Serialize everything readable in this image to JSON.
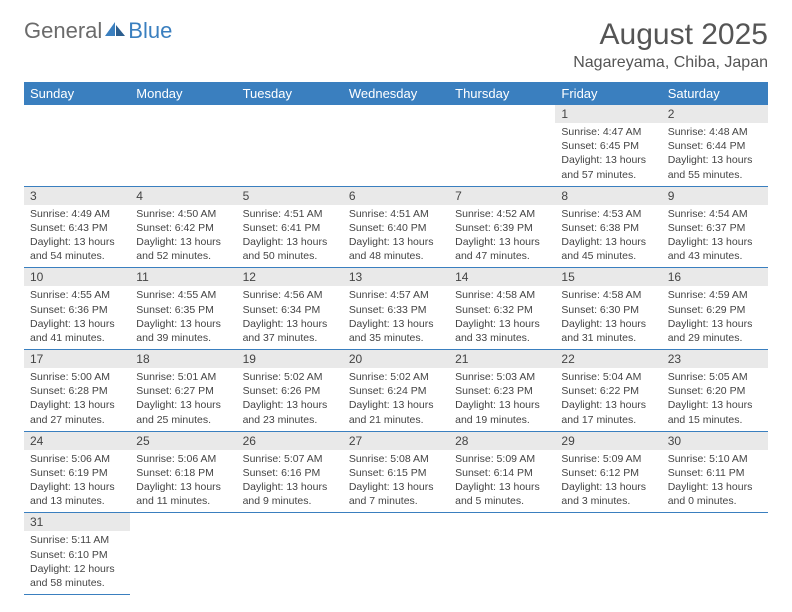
{
  "logo": {
    "general": "General",
    "blue": "Blue"
  },
  "title": "August 2025",
  "location": "Nagareyama, Chiba, Japan",
  "colors": {
    "header_bg": "#3a7fbf",
    "header_text": "#ffffff",
    "daynum_bg": "#e9e9e9",
    "text": "#444444",
    "border": "#3a7fbf"
  },
  "day_headers": [
    "Sunday",
    "Monday",
    "Tuesday",
    "Wednesday",
    "Thursday",
    "Friday",
    "Saturday"
  ],
  "weeks": [
    [
      null,
      null,
      null,
      null,
      null,
      {
        "n": "1",
        "sunrise": "Sunrise: 4:47 AM",
        "sunset": "Sunset: 6:45 PM",
        "daylight": "Daylight: 13 hours and 57 minutes."
      },
      {
        "n": "2",
        "sunrise": "Sunrise: 4:48 AM",
        "sunset": "Sunset: 6:44 PM",
        "daylight": "Daylight: 13 hours and 55 minutes."
      }
    ],
    [
      {
        "n": "3",
        "sunrise": "Sunrise: 4:49 AM",
        "sunset": "Sunset: 6:43 PM",
        "daylight": "Daylight: 13 hours and 54 minutes."
      },
      {
        "n": "4",
        "sunrise": "Sunrise: 4:50 AM",
        "sunset": "Sunset: 6:42 PM",
        "daylight": "Daylight: 13 hours and 52 minutes."
      },
      {
        "n": "5",
        "sunrise": "Sunrise: 4:51 AM",
        "sunset": "Sunset: 6:41 PM",
        "daylight": "Daylight: 13 hours and 50 minutes."
      },
      {
        "n": "6",
        "sunrise": "Sunrise: 4:51 AM",
        "sunset": "Sunset: 6:40 PM",
        "daylight": "Daylight: 13 hours and 48 minutes."
      },
      {
        "n": "7",
        "sunrise": "Sunrise: 4:52 AM",
        "sunset": "Sunset: 6:39 PM",
        "daylight": "Daylight: 13 hours and 47 minutes."
      },
      {
        "n": "8",
        "sunrise": "Sunrise: 4:53 AM",
        "sunset": "Sunset: 6:38 PM",
        "daylight": "Daylight: 13 hours and 45 minutes."
      },
      {
        "n": "9",
        "sunrise": "Sunrise: 4:54 AM",
        "sunset": "Sunset: 6:37 PM",
        "daylight": "Daylight: 13 hours and 43 minutes."
      }
    ],
    [
      {
        "n": "10",
        "sunrise": "Sunrise: 4:55 AM",
        "sunset": "Sunset: 6:36 PM",
        "daylight": "Daylight: 13 hours and 41 minutes."
      },
      {
        "n": "11",
        "sunrise": "Sunrise: 4:55 AM",
        "sunset": "Sunset: 6:35 PM",
        "daylight": "Daylight: 13 hours and 39 minutes."
      },
      {
        "n": "12",
        "sunrise": "Sunrise: 4:56 AM",
        "sunset": "Sunset: 6:34 PM",
        "daylight": "Daylight: 13 hours and 37 minutes."
      },
      {
        "n": "13",
        "sunrise": "Sunrise: 4:57 AM",
        "sunset": "Sunset: 6:33 PM",
        "daylight": "Daylight: 13 hours and 35 minutes."
      },
      {
        "n": "14",
        "sunrise": "Sunrise: 4:58 AM",
        "sunset": "Sunset: 6:32 PM",
        "daylight": "Daylight: 13 hours and 33 minutes."
      },
      {
        "n": "15",
        "sunrise": "Sunrise: 4:58 AM",
        "sunset": "Sunset: 6:30 PM",
        "daylight": "Daylight: 13 hours and 31 minutes."
      },
      {
        "n": "16",
        "sunrise": "Sunrise: 4:59 AM",
        "sunset": "Sunset: 6:29 PM",
        "daylight": "Daylight: 13 hours and 29 minutes."
      }
    ],
    [
      {
        "n": "17",
        "sunrise": "Sunrise: 5:00 AM",
        "sunset": "Sunset: 6:28 PM",
        "daylight": "Daylight: 13 hours and 27 minutes."
      },
      {
        "n": "18",
        "sunrise": "Sunrise: 5:01 AM",
        "sunset": "Sunset: 6:27 PM",
        "daylight": "Daylight: 13 hours and 25 minutes."
      },
      {
        "n": "19",
        "sunrise": "Sunrise: 5:02 AM",
        "sunset": "Sunset: 6:26 PM",
        "daylight": "Daylight: 13 hours and 23 minutes."
      },
      {
        "n": "20",
        "sunrise": "Sunrise: 5:02 AM",
        "sunset": "Sunset: 6:24 PM",
        "daylight": "Daylight: 13 hours and 21 minutes."
      },
      {
        "n": "21",
        "sunrise": "Sunrise: 5:03 AM",
        "sunset": "Sunset: 6:23 PM",
        "daylight": "Daylight: 13 hours and 19 minutes."
      },
      {
        "n": "22",
        "sunrise": "Sunrise: 5:04 AM",
        "sunset": "Sunset: 6:22 PM",
        "daylight": "Daylight: 13 hours and 17 minutes."
      },
      {
        "n": "23",
        "sunrise": "Sunrise: 5:05 AM",
        "sunset": "Sunset: 6:20 PM",
        "daylight": "Daylight: 13 hours and 15 minutes."
      }
    ],
    [
      {
        "n": "24",
        "sunrise": "Sunrise: 5:06 AM",
        "sunset": "Sunset: 6:19 PM",
        "daylight": "Daylight: 13 hours and 13 minutes."
      },
      {
        "n": "25",
        "sunrise": "Sunrise: 5:06 AM",
        "sunset": "Sunset: 6:18 PM",
        "daylight": "Daylight: 13 hours and 11 minutes."
      },
      {
        "n": "26",
        "sunrise": "Sunrise: 5:07 AM",
        "sunset": "Sunset: 6:16 PM",
        "daylight": "Daylight: 13 hours and 9 minutes."
      },
      {
        "n": "27",
        "sunrise": "Sunrise: 5:08 AM",
        "sunset": "Sunset: 6:15 PM",
        "daylight": "Daylight: 13 hours and 7 minutes."
      },
      {
        "n": "28",
        "sunrise": "Sunrise: 5:09 AM",
        "sunset": "Sunset: 6:14 PM",
        "daylight": "Daylight: 13 hours and 5 minutes."
      },
      {
        "n": "29",
        "sunrise": "Sunrise: 5:09 AM",
        "sunset": "Sunset: 6:12 PM",
        "daylight": "Daylight: 13 hours and 3 minutes."
      },
      {
        "n": "30",
        "sunrise": "Sunrise: 5:10 AM",
        "sunset": "Sunset: 6:11 PM",
        "daylight": "Daylight: 13 hours and 0 minutes."
      }
    ],
    [
      {
        "n": "31",
        "sunrise": "Sunrise: 5:11 AM",
        "sunset": "Sunset: 6:10 PM",
        "daylight": "Daylight: 12 hours and 58 minutes."
      },
      null,
      null,
      null,
      null,
      null,
      null
    ]
  ]
}
